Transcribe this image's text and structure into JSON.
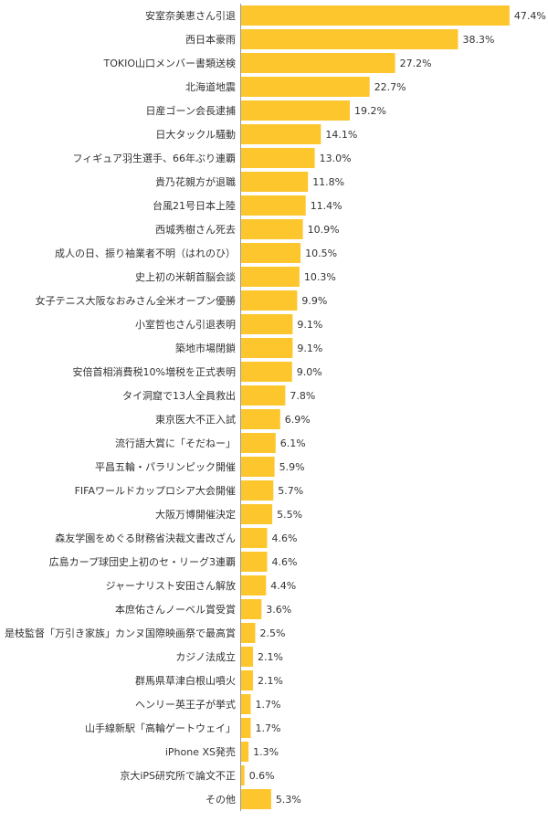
{
  "chart_data": {
    "type": "bar",
    "orientation": "horizontal",
    "title": "",
    "xlabel": "",
    "ylabel": "",
    "xlim": [
      0,
      50
    ],
    "grid": false,
    "legend": "none",
    "bar_color": "#FEC62D",
    "value_suffix": "%",
    "categories": [
      "安室奈美恵さん引退",
      "西日本豪雨",
      "TOKIO山口メンバー書類送検",
      "北海道地震",
      "日産ゴーン会長逮捕",
      "日大タックル騒動",
      "フィギュア羽生選手、66年ぶり連覇",
      "貴乃花親方が退職",
      "台風21号日本上陸",
      "西城秀樹さん死去",
      "成人の日、振り袖業者不明（はれのひ）",
      "史上初の米朝首脳会談",
      "女子テニス大阪なおみさん全米オープン優勝",
      "小室哲也さん引退表明",
      "築地市場閉鎖",
      "安倍首相消費税10%増税を正式表明",
      "タイ洞窟で13人全員救出",
      "東京医大不正入試",
      "流行語大賞に「そだねー」",
      "平昌五輪・パラリンピック開催",
      "FIFAワールドカップロシア大会開催",
      "大阪万博開催決定",
      "森友学園をめぐる財務省決裁文書改ざん",
      "広島カープ球団史上初のセ・リーグ3連覇",
      "ジャーナリスト安田さん解放",
      "本庶佑さんノーベル賞受賞",
      "是枝監督「万引き家族」カンヌ国際映画祭で最高賞",
      "カジノ法成立",
      "群馬県草津白根山噴火",
      "ヘンリー英王子が挙式",
      "山手線新駅「高輪ゲートウェイ」",
      "iPhone XS発売",
      "京大iPS研究所で論文不正",
      "その他"
    ],
    "values": [
      47.4,
      38.3,
      27.2,
      22.7,
      19.2,
      14.1,
      13.0,
      11.8,
      11.4,
      10.9,
      10.5,
      10.3,
      9.9,
      9.1,
      9.1,
      9.0,
      7.8,
      6.9,
      6.1,
      5.9,
      5.7,
      5.5,
      4.6,
      4.6,
      4.4,
      3.6,
      2.5,
      2.1,
      2.1,
      1.7,
      1.7,
      1.3,
      0.6,
      5.3
    ],
    "value_labels": [
      "47.4%",
      "38.3%",
      "27.2%",
      "22.7%",
      "19.2%",
      "14.1%",
      "13.0%",
      "11.8%",
      "11.4%",
      "10.9%",
      "10.5%",
      "10.3%",
      "9.9%",
      "9.1%",
      "9.1%",
      "9.0%",
      "7.8%",
      "6.9%",
      "6.1%",
      "5.9%",
      "5.7%",
      "5.5%",
      "4.6%",
      "4.6%",
      "4.4%",
      "3.6%",
      "2.5%",
      "2.1%",
      "2.1%",
      "1.7%",
      "1.7%",
      "1.3%",
      "0.6%",
      "5.3%"
    ]
  }
}
